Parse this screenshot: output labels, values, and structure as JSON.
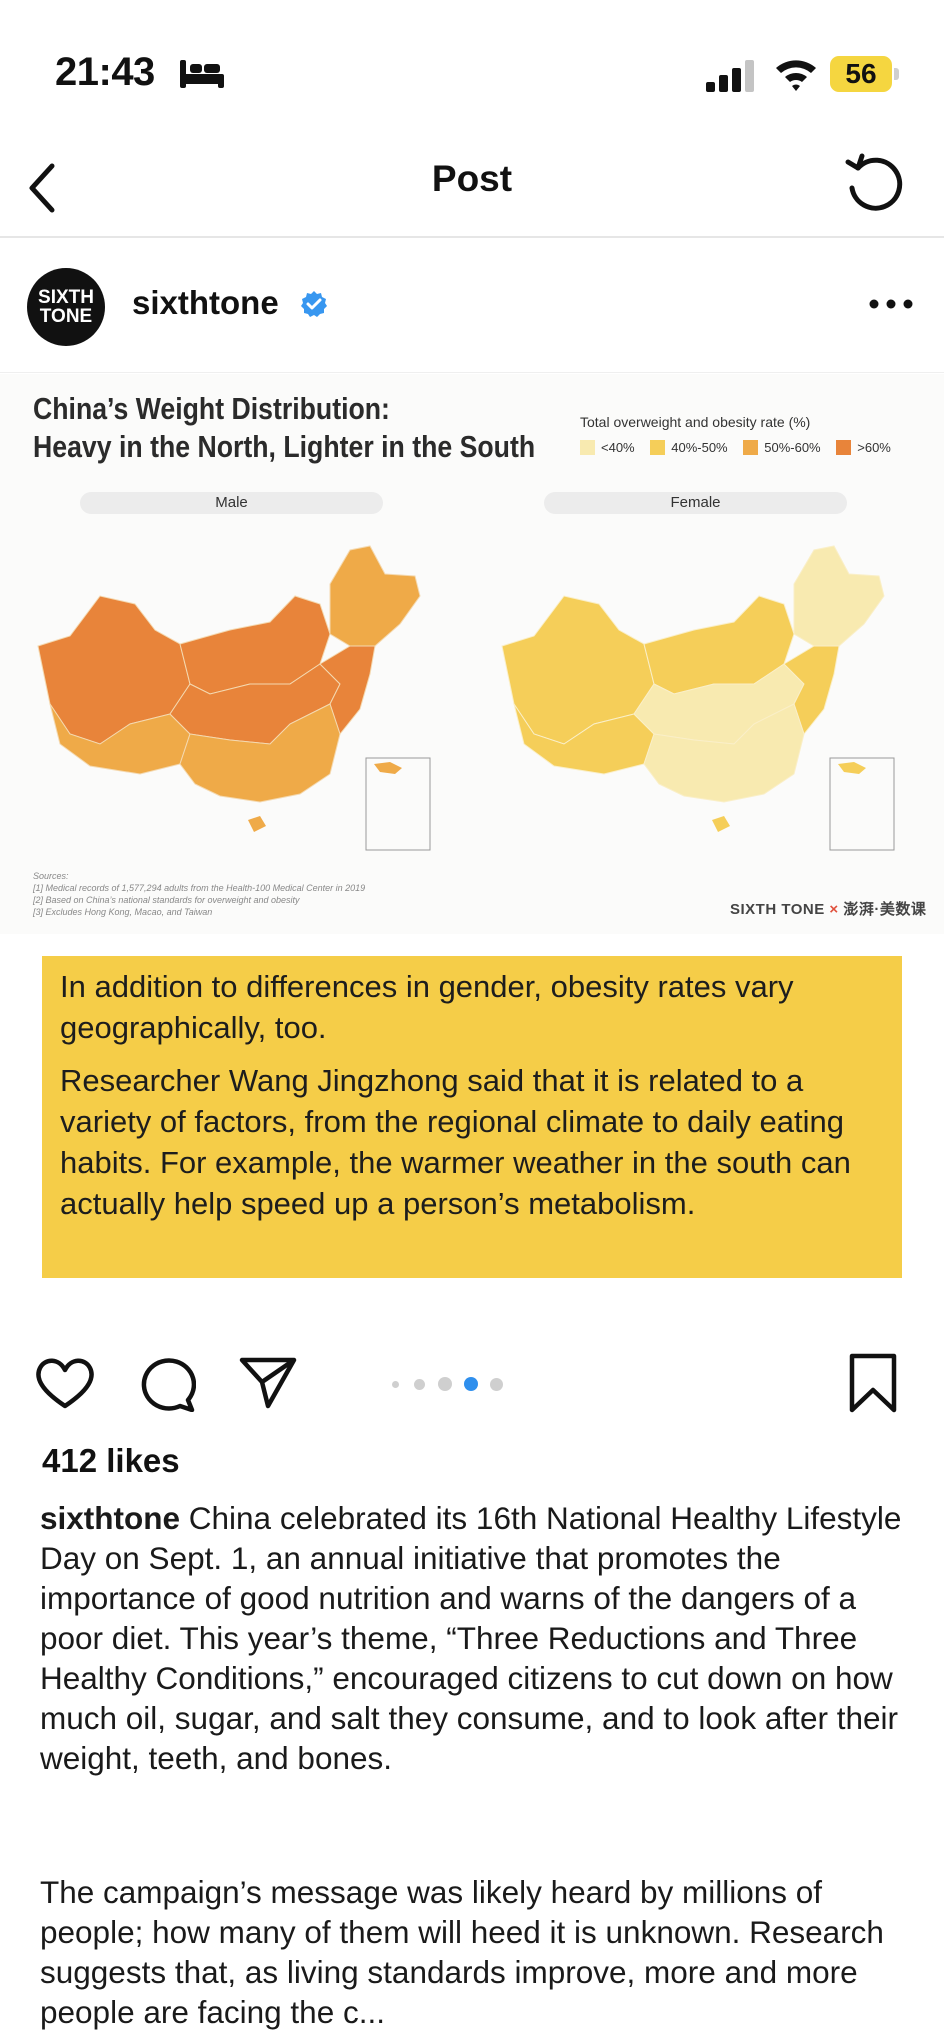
{
  "status_bar": {
    "time": "21:43",
    "battery": "56",
    "icons": [
      "bed-icon",
      "cellular-signal-icon",
      "wifi-icon",
      "battery-icon"
    ]
  },
  "nav": {
    "title": "Post"
  },
  "post": {
    "username": "sixthtone",
    "avatar_text": [
      "SIXTH",
      "TONE"
    ],
    "likes": "412 likes",
    "caption_username": "sixthtone",
    "caption_text": " China celebrated its 16th National Healthy Lifestyle Day on Sept. 1, an annual initiative that promotes the importance of good nutrition and warns of the dangers of a poor diet. This year’s theme, “Three Reductions and Three Healthy Conditions,” encouraged citizens to cut down on how much oil, sugar, and salt they consume, and to look after their weight, teeth, and bones.",
    "caption_text_2": "The campaign’s message was likely heard by millions of people; how many of them will heed it is unknown. Research suggests that, as living standards improve, more and more people are facing the c...",
    "carousel": {
      "count": 5,
      "active": 3
    }
  },
  "infographic": {
    "title_line1": "China’s Weight Distribution:",
    "title_line2": "Heavy in the North, Lighter in the South",
    "legend_title": "Total overweight and obesity rate (%)",
    "legend": [
      {
        "label": "<40%",
        "color": "#f8eab0"
      },
      {
        "label": "40%-50%",
        "color": "#f5ce59"
      },
      {
        "label": "50%-60%",
        "color": "#efaa48"
      },
      {
        "label": ">60%",
        "color": "#e8843a"
      }
    ],
    "panels": [
      "Male",
      "Female"
    ],
    "sources": [
      "Sources:",
      "[1] Medical records of 1,577,294 adults from the Health-100 Medical Center in 2019",
      "[2] Based on China’s national standards for overweight and obesity",
      "[3] Excludes Hong Kong, Macao, and Taiwan"
    ],
    "credit_left": "SIXTH TONE",
    "credit_x": "×",
    "credit_right": "澎湃·美数课",
    "callout_p1": "In addition to differences in gender, obesity rates vary geographically, too.",
    "callout_p2": "Researcher Wang Jingzhong said that it is related to a variety of factors, from the regional climate to daily eating habits. For example, the warmer weather in the south can actually help speed up a person’s metabolism."
  }
}
